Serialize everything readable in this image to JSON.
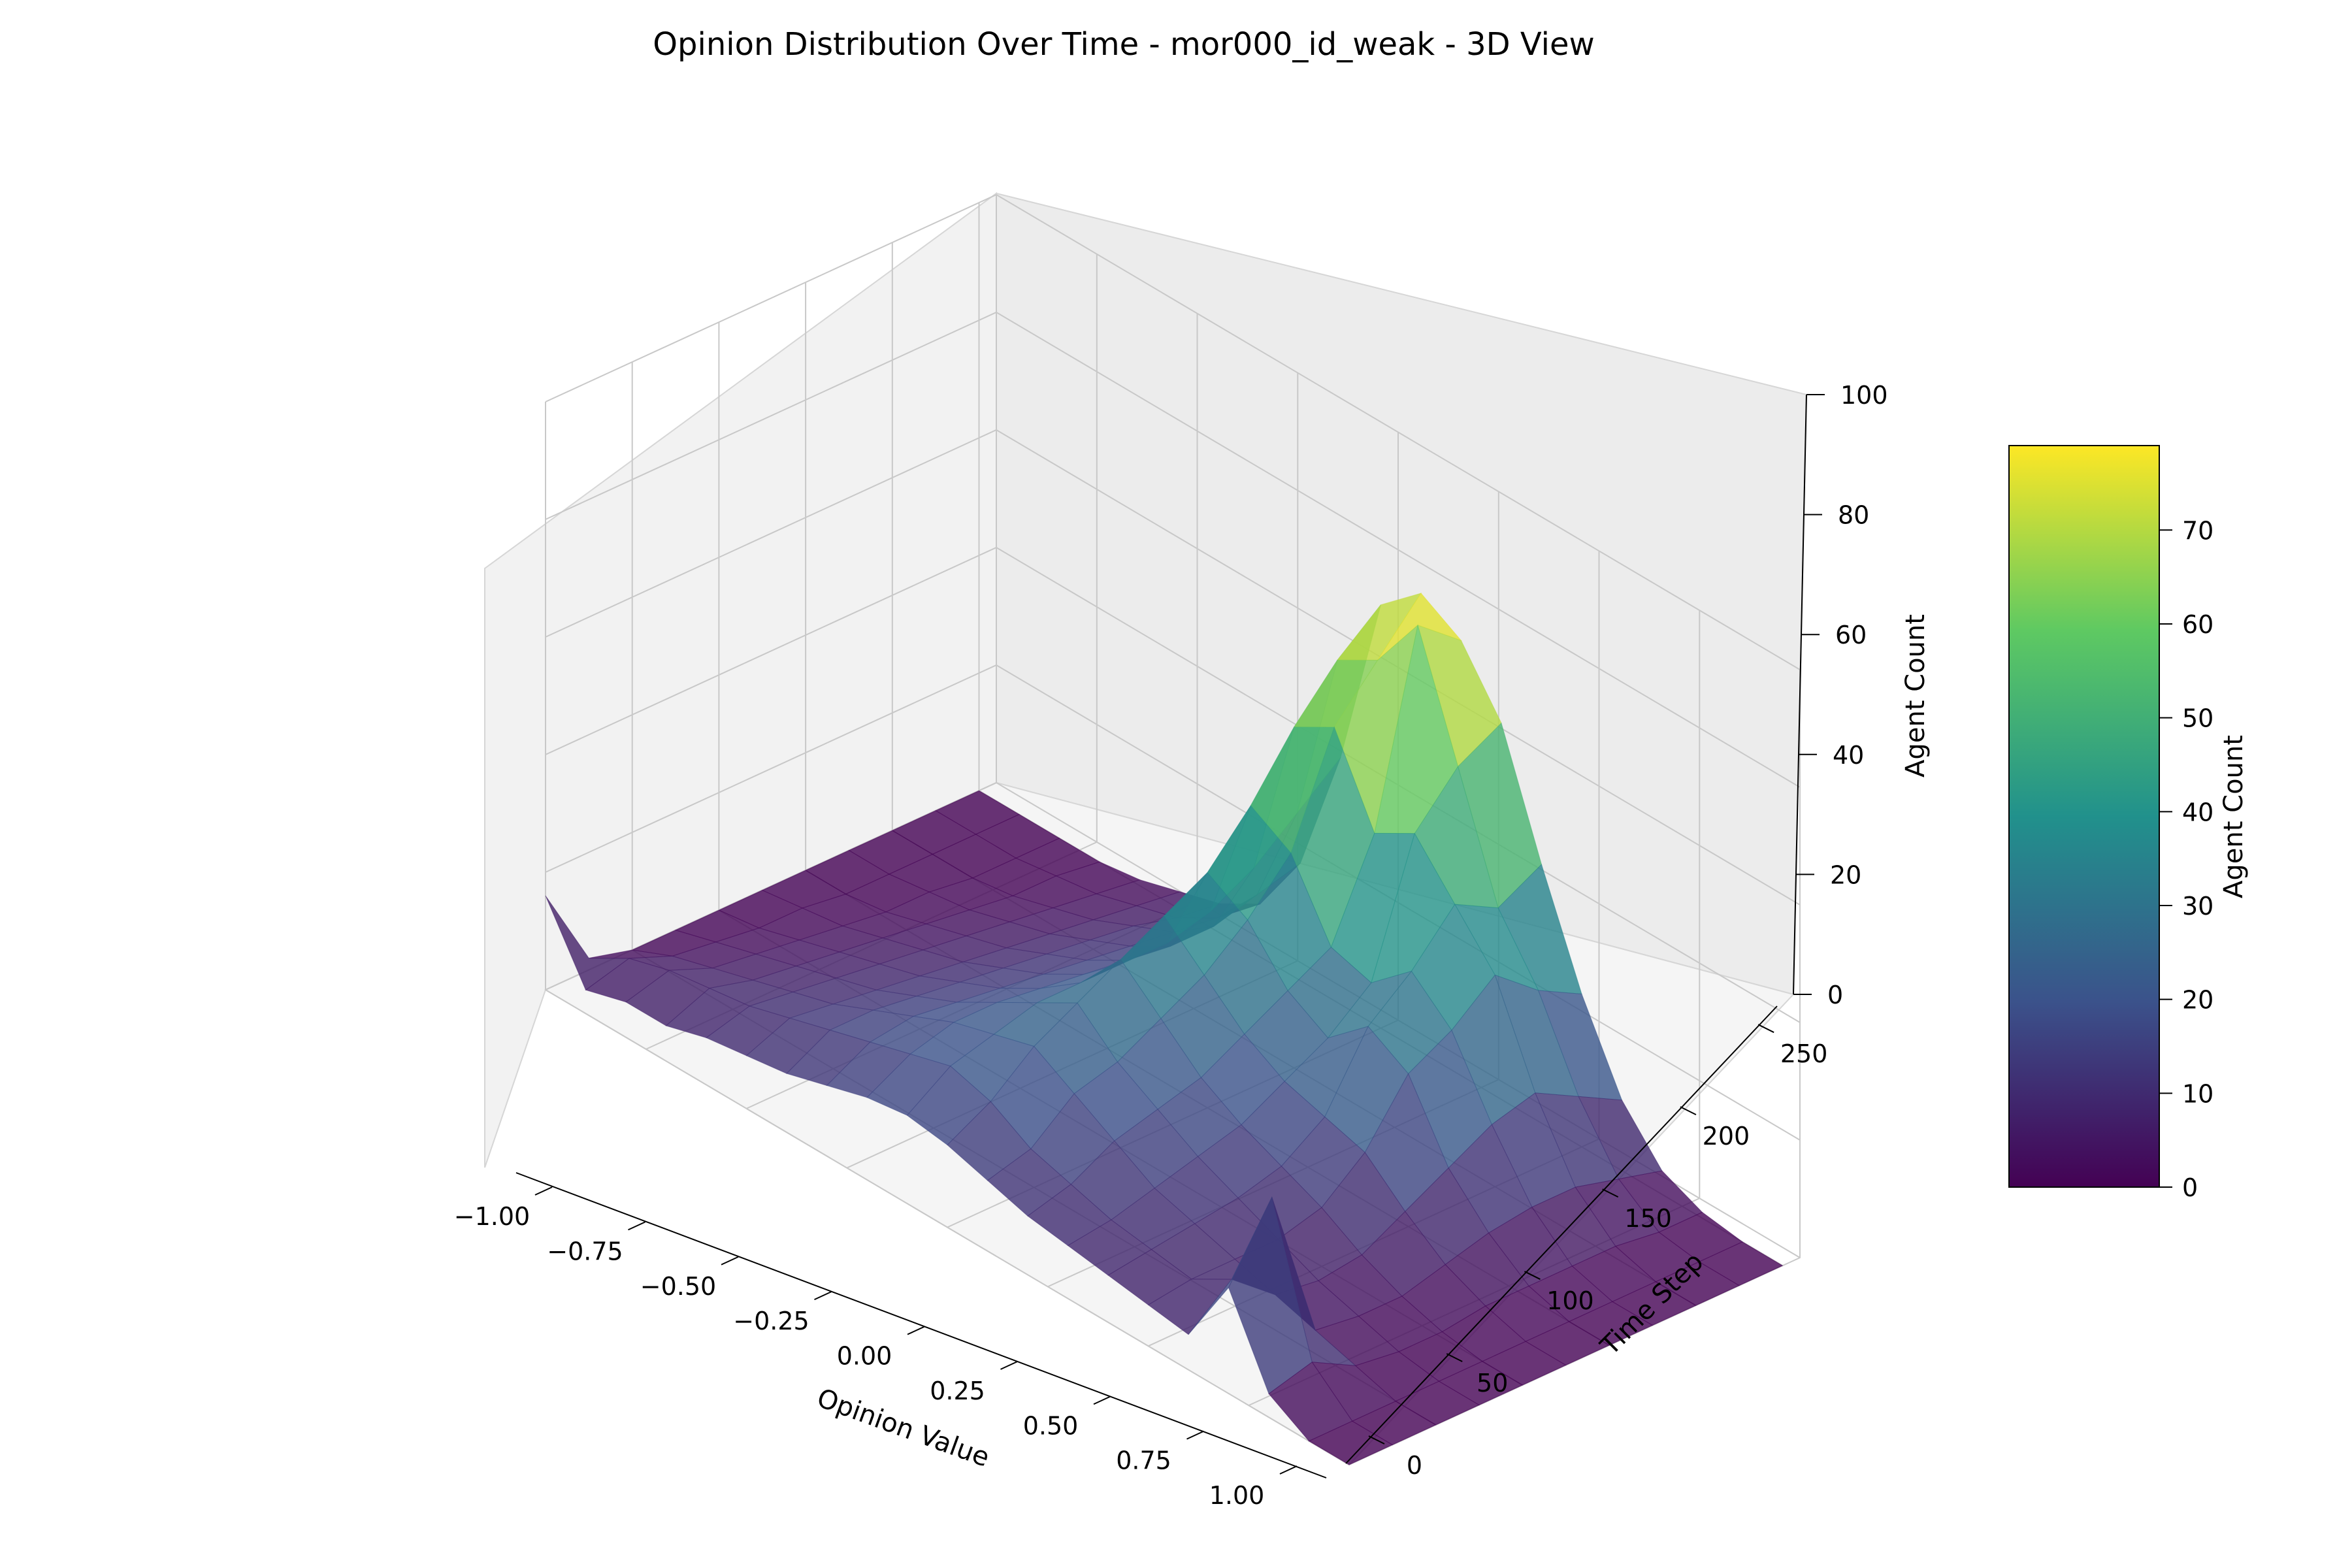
{
  "chart_data": {
    "type": "surface3d",
    "title": "Opinion Distribution Over Time - mor000_id_weak - 3D View",
    "xlabel": "Opinion Value",
    "ylabel": "Time Step",
    "zlabel": "Agent Count",
    "xlim": [
      -1.0,
      1.0
    ],
    "ylim": [
      0,
      260
    ],
    "zlim": [
      0,
      100
    ],
    "xticks": [
      "−1.00",
      "−0.75",
      "−0.50",
      "−0.25",
      "0.00",
      "0.25",
      "0.50",
      "0.75",
      "1.00"
    ],
    "yticks": [
      "0",
      "50",
      "100",
      "150",
      "200",
      "250"
    ],
    "zticks": [
      "0",
      "20",
      "40",
      "60",
      "80",
      "100"
    ],
    "colormap": "viridis",
    "colormap_stops": [
      "#440154",
      "#3b528b",
      "#21918c",
      "#5ec962",
      "#fde725"
    ],
    "surface_alpha": 0.8,
    "grid": true,
    "opinion_bins": [
      -1.0,
      -0.9,
      -0.8,
      -0.7,
      -0.6,
      -0.5,
      -0.4,
      -0.3,
      -0.2,
      -0.1,
      0.0,
      0.1,
      0.2,
      0.3,
      0.4,
      0.5,
      0.6,
      0.7,
      0.8,
      0.9,
      1.0
    ],
    "time_steps": [
      0,
      25,
      50,
      75,
      100,
      125,
      150,
      175,
      200,
      225,
      250
    ],
    "agent_count": [
      [
        16,
        4,
        6,
        6,
        8,
        9,
        10,
        12,
        14,
        15,
        14,
        12,
        10,
        9,
        8,
        7,
        6,
        18,
        4,
        0,
        0
      ],
      [
        2,
        6,
        8,
        9,
        10,
        12,
        14,
        16,
        18,
        20,
        18,
        14,
        12,
        10,
        9,
        8,
        12,
        30,
        6,
        0,
        0
      ],
      [
        0,
        3,
        5,
        7,
        9,
        11,
        14,
        17,
        20,
        22,
        24,
        20,
        16,
        12,
        10,
        8,
        6,
        4,
        2,
        0,
        0
      ],
      [
        0,
        2,
        4,
        6,
        8,
        10,
        13,
        16,
        20,
        24,
        28,
        22,
        18,
        14,
        11,
        8,
        5,
        3,
        1,
        0,
        0
      ],
      [
        0,
        1,
        3,
        5,
        7,
        9,
        12,
        15,
        19,
        24,
        32,
        26,
        20,
        16,
        13,
        10,
        6,
        3,
        1,
        0,
        0
      ],
      [
        0,
        1,
        2,
        4,
        6,
        8,
        11,
        14,
        18,
        24,
        36,
        30,
        24,
        20,
        18,
        16,
        10,
        5,
        2,
        0,
        0
      ],
      [
        0,
        0,
        1,
        3,
        5,
        7,
        10,
        13,
        17,
        24,
        40,
        36,
        28,
        24,
        30,
        26,
        14,
        7,
        2,
        0,
        0
      ],
      [
        0,
        0,
        1,
        2,
        4,
        6,
        9,
        12,
        16,
        26,
        48,
        44,
        32,
        30,
        36,
        30,
        18,
        8,
        2,
        0,
        0
      ],
      [
        0,
        0,
        0,
        1,
        3,
        5,
        8,
        11,
        16,
        30,
        58,
        62,
        48,
        52,
        44,
        36,
        20,
        8,
        2,
        0,
        0
      ],
      [
        0,
        0,
        0,
        1,
        2,
        4,
        6,
        10,
        18,
        36,
        66,
        70,
        80,
        60,
        40,
        30,
        16,
        6,
        1,
        0,
        0
      ],
      [
        0,
        0,
        0,
        0,
        1,
        3,
        5,
        9,
        20,
        42,
        72,
        78,
        74,
        64,
        44,
        26,
        12,
        4,
        1,
        0,
        0
      ]
    ],
    "colorbar": {
      "label": "Agent Count",
      "range": [
        0,
        79
      ],
      "ticks": [
        "0",
        "10",
        "20",
        "30",
        "40",
        "50",
        "60",
        "70"
      ]
    }
  }
}
